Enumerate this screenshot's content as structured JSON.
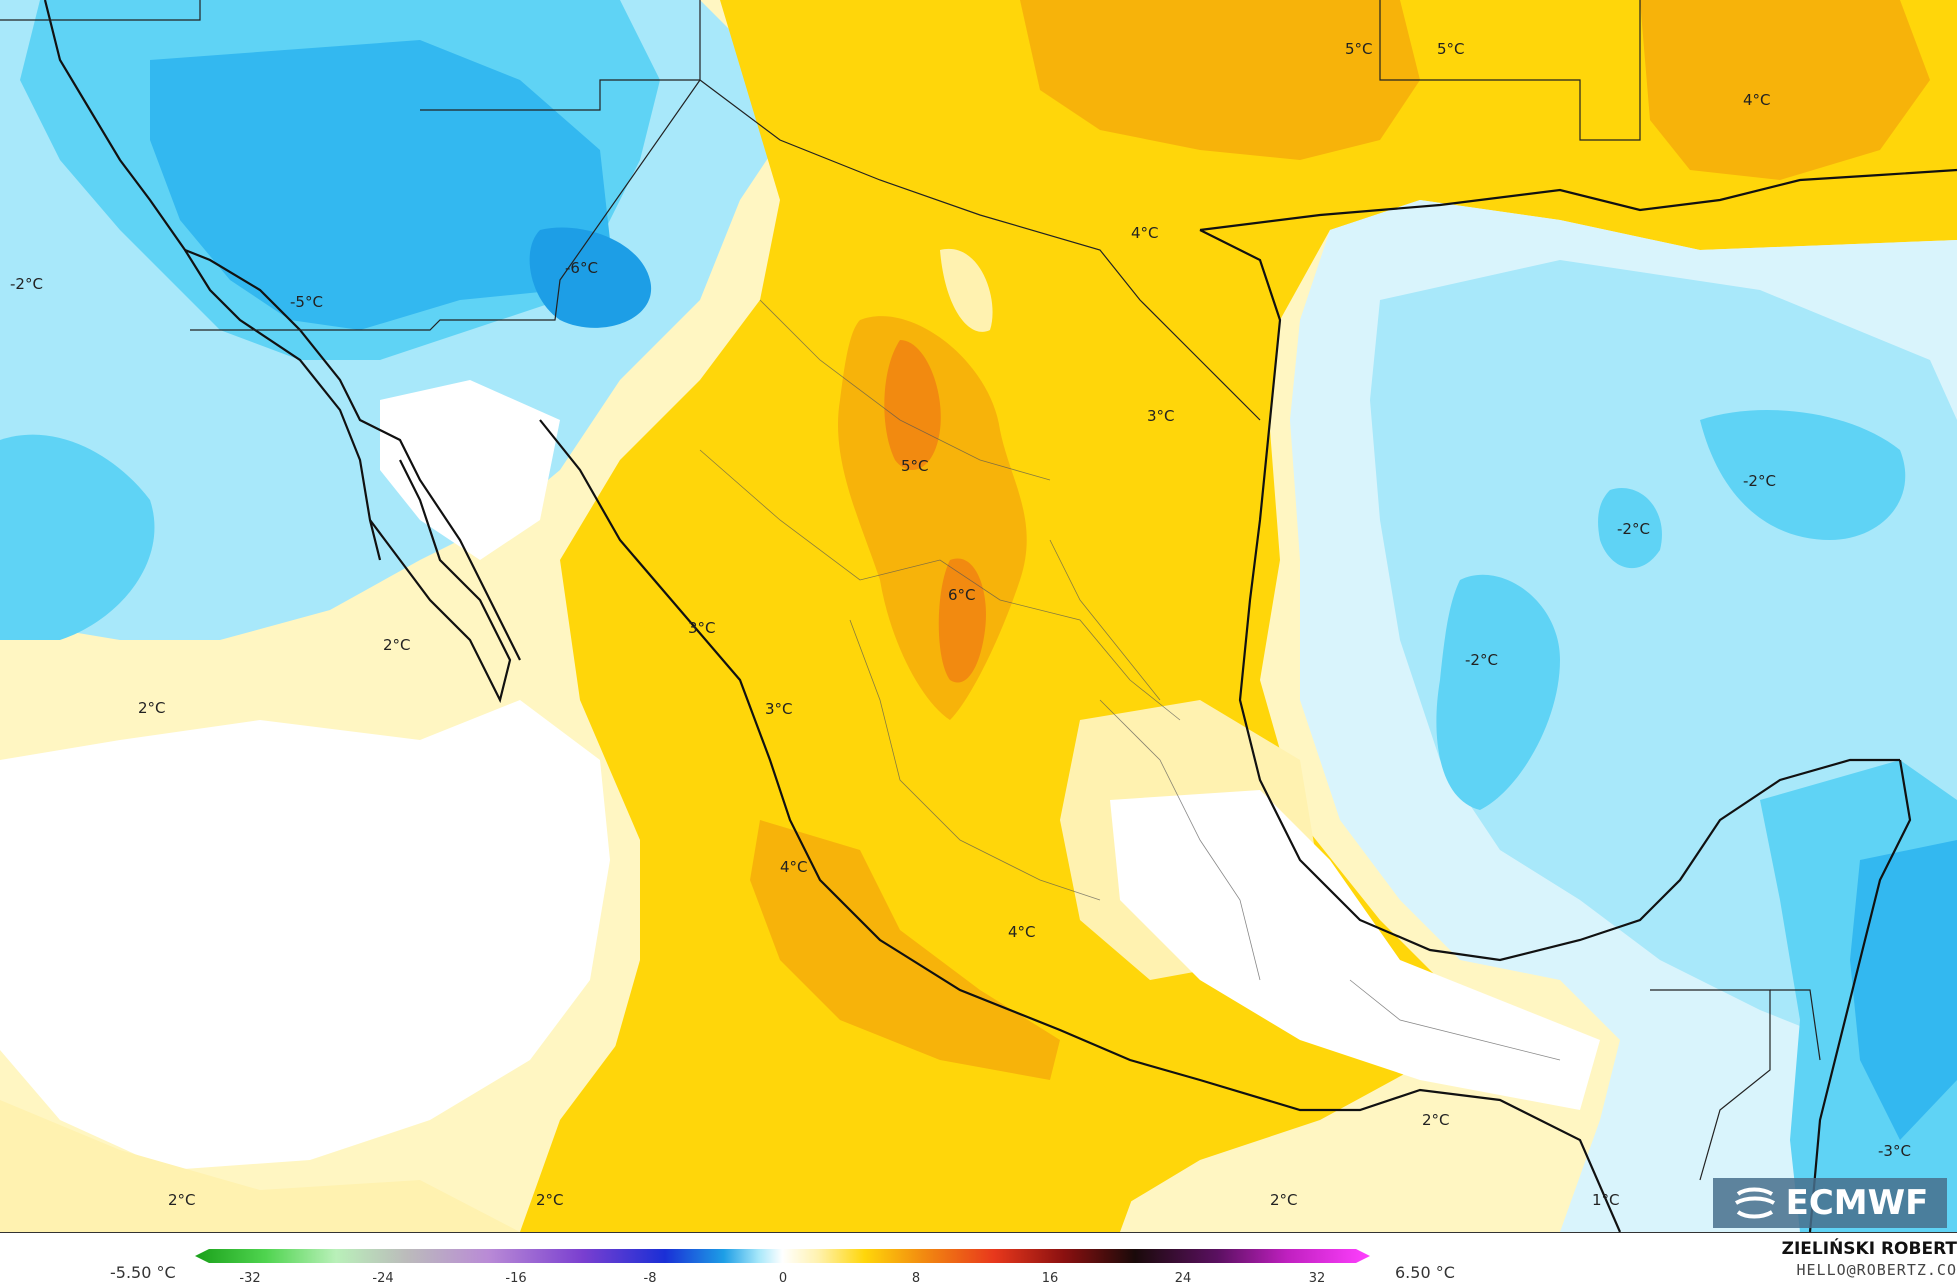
{
  "map_labels": [
    {
      "text": "-2°C"
    },
    {
      "text": "-5°C"
    },
    {
      "text": "-6°C"
    },
    {
      "text": "5°C"
    },
    {
      "text": "5°C"
    },
    {
      "text": "4°C"
    },
    {
      "text": "4°C"
    },
    {
      "text": "3°C"
    },
    {
      "text": "5°C"
    },
    {
      "text": "6°C"
    },
    {
      "text": "-2°C"
    },
    {
      "text": "-2°C"
    },
    {
      "text": "-2°C"
    },
    {
      "text": "2°C"
    },
    {
      "text": "2°C"
    },
    {
      "text": "3°C"
    },
    {
      "text": "3°C"
    },
    {
      "text": "4°C"
    },
    {
      "text": "4°C"
    },
    {
      "text": "2°C"
    },
    {
      "text": "2°C"
    },
    {
      "text": "2°C"
    },
    {
      "text": "2°C"
    },
    {
      "text": "1°C"
    },
    {
      "text": "-3°C"
    }
  ],
  "legend": {
    "min": "-5.50 °C",
    "max": "6.50 °C",
    "ticks": [
      "-32",
      "-24",
      "-16",
      "-8",
      "0",
      "8",
      "16",
      "24",
      "32"
    ]
  },
  "credit": {
    "author": "ZIELIŃSKI ROBERT",
    "email": "HELLO@ROBERTZ.CO"
  },
  "brand": {
    "name": "ECMWF",
    "icon": "ecmwf-logo-icon"
  },
  "colors": {
    "cold_strong": "#33b8f0",
    "cold": "#5fd3f5",
    "cold_light": "#a8e8fa",
    "very_light_blue": "#d9f4fc",
    "neutral": "#ffffff",
    "warm_light": "#fff2b0",
    "warm": "#ffd60a",
    "warm_strong": "#f7b30a",
    "hot": "#f28a10",
    "coast": "#111111"
  }
}
